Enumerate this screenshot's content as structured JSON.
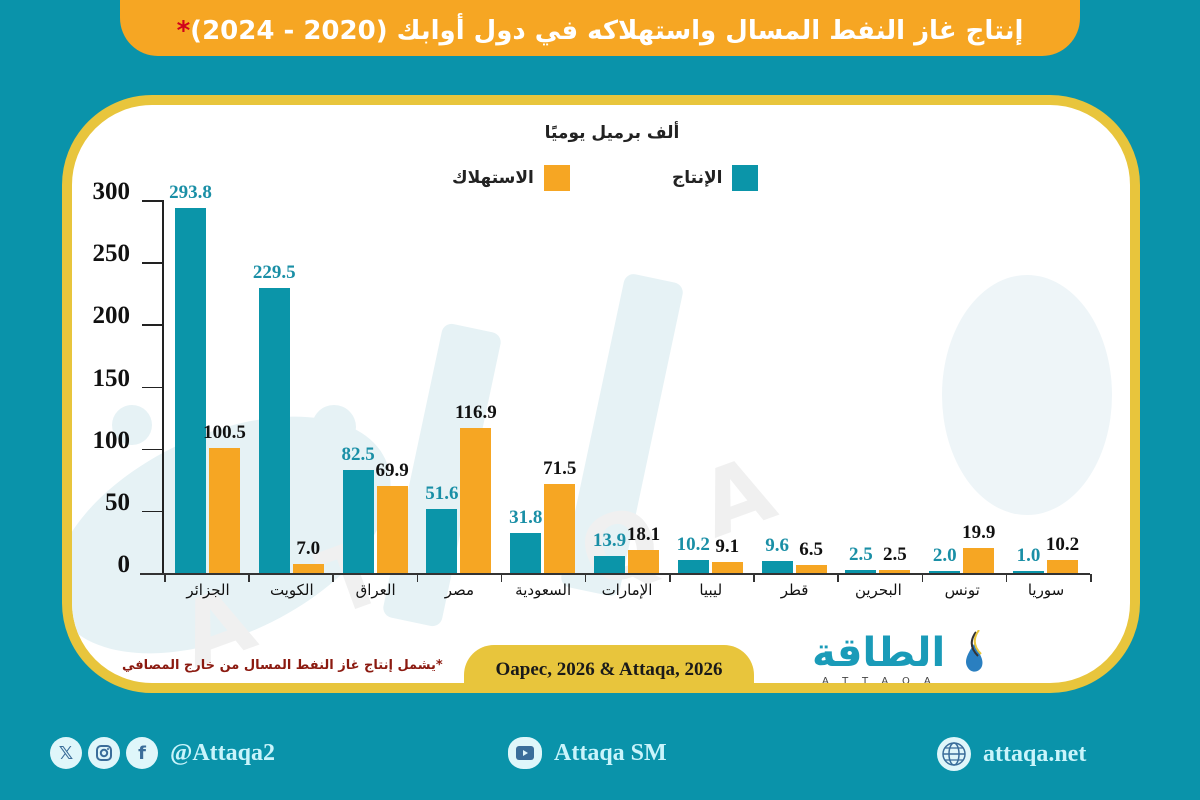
{
  "header": {
    "title": "إنتاج غاز النفط المسال واستهلاكه في دول أوابك (2020 - 2024)",
    "title_marker": "*"
  },
  "chart": {
    "unit_label": "ألف برميل يوميًا",
    "legend": [
      {
        "label": "الإنتاج",
        "color": "#0b95a9"
      },
      {
        "label": "الاستهلاك",
        "color": "#f6a623"
      }
    ],
    "note": "*يشمل إنتاج غاز النفط المسال من خارج المصافي",
    "source": "Oapec, 2026 & Attaqa, 2026"
  },
  "chart_data": {
    "type": "bar",
    "title": "إنتاج غاز النفط المسال واستهلاكه في دول أوابك (2020 - 2024)*",
    "ylabel": "ألف برميل يوميًا",
    "xlabel": "",
    "ylim": [
      0,
      300
    ],
    "yticks": [
      0,
      50,
      100,
      150,
      200,
      250,
      300
    ],
    "grid": false,
    "legend_position": "top",
    "categories": [
      "الجزائر",
      "الكويت",
      "العراق",
      "مصر",
      "السعودية",
      "الإمارات",
      "ليبيا",
      "قطر",
      "البحرين",
      "تونس",
      "سوريا"
    ],
    "series": [
      {
        "name": "الإنتاج",
        "color": "#0b95a9",
        "label_color": "#1a8fa6",
        "values": [
          293.8,
          229.5,
          82.5,
          51.6,
          31.8,
          13.9,
          10.2,
          9.6,
          2.5,
          2.0,
          1.0
        ]
      },
      {
        "name": "الاستهلاك",
        "color": "#f6a623",
        "label_color": "#111111",
        "values": [
          100.5,
          7.0,
          69.9,
          116.9,
          71.5,
          18.1,
          9.1,
          6.5,
          2.5,
          19.9,
          10.2
        ]
      }
    ],
    "value_labels": {
      "production": [
        "293.8",
        "229.5",
        "82.5",
        "51.6",
        "31.8",
        "13.9",
        "10.2",
        "9.6",
        "2.5",
        "2.0",
        "1.0"
      ],
      "consumption": [
        "100.5",
        "7.0",
        "69.9",
        "116.9",
        "71.5",
        "18.1",
        "9.1",
        "6.5",
        "2.5",
        "19.9",
        "10.2"
      ]
    }
  },
  "logo": {
    "arabic": "الطاقة",
    "latin": "ATTAQA"
  },
  "footer": {
    "social_handle": "@Attaqa2",
    "youtube": "Attaqa SM",
    "website": "attaqa.net",
    "icons": [
      "x-icon",
      "instagram-icon",
      "facebook-icon",
      "youtube-icon",
      "globe-icon"
    ]
  }
}
